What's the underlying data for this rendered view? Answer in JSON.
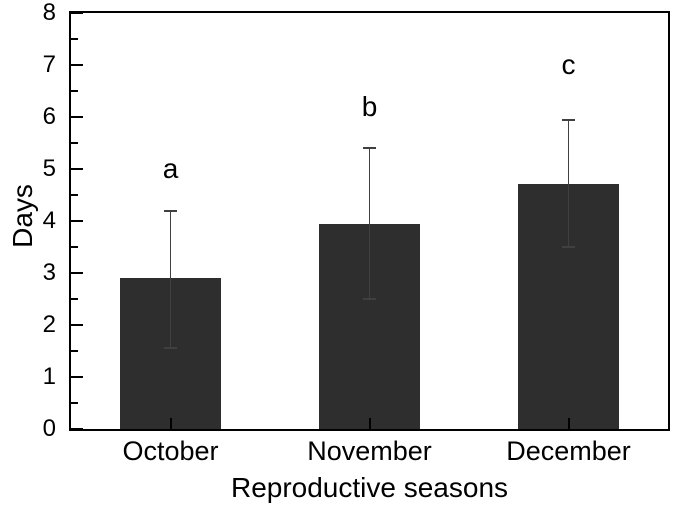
{
  "figure": {
    "background": "#ffffff"
  },
  "chart_data": {
    "type": "bar",
    "title": "",
    "xlabel": "Reproductive seasons",
    "ylabel": "Days",
    "categories": [
      "October",
      "November",
      "December"
    ],
    "values": [
      2.9,
      3.95,
      4.72
    ],
    "error_top": [
      4.2,
      5.4,
      5.95
    ],
    "error_bottom": [
      1.55,
      2.5,
      3.5
    ],
    "sig_letters": [
      "a",
      "b",
      "c"
    ],
    "sig_letter_y": [
      5.0,
      6.2,
      7.0
    ],
    "ylim": [
      0,
      8
    ],
    "ytick_step": 1,
    "yminor_step": 0.5,
    "ytick_labels": [
      "0",
      "1",
      "2",
      "3",
      "4",
      "5",
      "6",
      "7",
      "8"
    ],
    "grid": false,
    "legend_position": "none",
    "bar_color": "#2e2e2e",
    "error_color": "#404040",
    "axis_color": "#000000",
    "text_color": "#000000"
  }
}
